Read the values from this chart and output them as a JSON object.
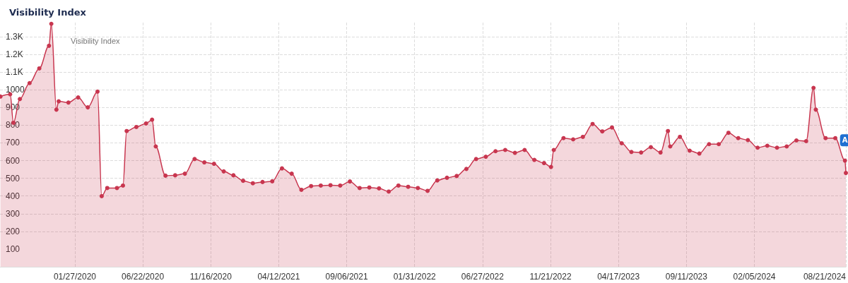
{
  "chart_data": {
    "type": "area",
    "title": "Visibility Index",
    "annotations": [
      "Visibility Index",
      {
        "text": "A",
        "x": "2024-08-19",
        "y": 715
      }
    ],
    "x": [
      "2019-08-19",
      "2019-09-09",
      "2019-09-16",
      "2019-09-30",
      "2019-10-21",
      "2019-11-11",
      "2019-12-02",
      "2019-12-07",
      "2019-12-18",
      "2019-12-23",
      "2020-01-13",
      "2020-02-03",
      "2020-02-24",
      "2020-03-16",
      "2020-03-25",
      "2020-04-06",
      "2020-04-27",
      "2020-05-10",
      "2020-05-18",
      "2020-06-08",
      "2020-06-29",
      "2020-07-12",
      "2020-07-20",
      "2020-08-10",
      "2020-08-31",
      "2020-09-21",
      "2020-10-12",
      "2020-11-02",
      "2020-11-23",
      "2020-12-14",
      "2021-01-04",
      "2021-01-25",
      "2021-02-15",
      "2021-03-08",
      "2021-03-29",
      "2021-04-19",
      "2021-05-10",
      "2021-05-31",
      "2021-06-21",
      "2021-07-12",
      "2021-08-02",
      "2021-08-23",
      "2021-09-13",
      "2021-10-04",
      "2021-10-25",
      "2021-11-15",
      "2021-12-06",
      "2021-12-27",
      "2022-01-17",
      "2022-02-07",
      "2022-02-28",
      "2022-03-21",
      "2022-04-11",
      "2022-05-02",
      "2022-05-23",
      "2022-06-13",
      "2022-07-04",
      "2022-07-25",
      "2022-08-15",
      "2022-09-05",
      "2022-09-26",
      "2022-10-17",
      "2022-11-07",
      "2022-11-22",
      "2022-11-28",
      "2022-12-19",
      "2023-01-09",
      "2023-01-30",
      "2023-02-20",
      "2023-03-13",
      "2023-04-03",
      "2023-04-24",
      "2023-05-15",
      "2023-06-05",
      "2023-06-26",
      "2023-07-17",
      "2023-08-02",
      "2023-08-07",
      "2023-08-28",
      "2023-09-18",
      "2023-10-09",
      "2023-10-30",
      "2023-11-20",
      "2023-12-11",
      "2024-01-01",
      "2024-01-22",
      "2024-02-12",
      "2024-03-04",
      "2024-03-25",
      "2024-04-15",
      "2024-05-06",
      "2024-05-27",
      "2024-06-12",
      "2024-06-17",
      "2024-07-08",
      "2024-07-29",
      "2024-08-19",
      "2024-08-21"
    ],
    "series": [
      {
        "color": "#c8364f",
        "values": [
          962,
          975,
          814,
          948,
          1038,
          1121,
          1249,
          1373,
          888,
          935,
          928,
          957,
          901,
          990,
          399,
          445,
          445,
          459,
          767,
          790,
          810,
          831,
          680,
          515,
          517,
          526,
          609,
          590,
          582,
          539,
          517,
          486,
          472,
          479,
          483,
          556,
          526,
          435,
          456,
          459,
          461,
          459,
          482,
          445,
          448,
          443,
          425,
          459,
          452,
          445,
          429,
          488,
          503,
          513,
          553,
          609,
          622,
          653,
          660,
          644,
          660,
          604,
          586,
          564,
          660,
          727,
          720,
          734,
          807,
          765,
          787,
          698,
          649,
          646,
          676,
          646,
          767,
          680,
          734,
          656,
          640,
          693,
          693,
          757,
          727,
          716,
          673,
          684,
          673,
          680,
          714,
          710,
          1011,
          888,
          727,
          727,
          600,
          530
        ]
      }
    ],
    "xlim": [
      "2019-08-18",
      "2024-08-21"
    ],
    "xticks": [
      {
        "value": "2020-01-27",
        "label": "01/27/2020"
      },
      {
        "value": "2020-06-22",
        "label": "06/22/2020"
      },
      {
        "value": "2020-11-16",
        "label": "11/16/2020"
      },
      {
        "value": "2021-04-12",
        "label": "04/12/2021"
      },
      {
        "value": "2021-09-06",
        "label": "09/06/2021"
      },
      {
        "value": "2022-01-31",
        "label": "01/31/2022"
      },
      {
        "value": "2022-06-27",
        "label": "06/27/2022"
      },
      {
        "value": "2022-11-21",
        "label": "11/21/2022"
      },
      {
        "value": "2023-04-17",
        "label": "04/17/2023"
      },
      {
        "value": "2023-09-11",
        "label": "09/11/2023"
      },
      {
        "value": "2024-02-05",
        "label": "02/05/2024"
      },
      {
        "value": "2024-08-21",
        "label": "08/21/2024"
      }
    ],
    "ylim": [
      0,
      1380
    ],
    "yticks": [
      100,
      200,
      300,
      400,
      500,
      600,
      700,
      800,
      900,
      1000,
      {
        "value": 1100,
        "label": "1.1K"
      },
      {
        "value": 1200,
        "label": "1.2K"
      },
      {
        "value": 1300,
        "label": "1.3K"
      }
    ],
    "grid": true,
    "marker": "circle",
    "line_style": "solid"
  }
}
